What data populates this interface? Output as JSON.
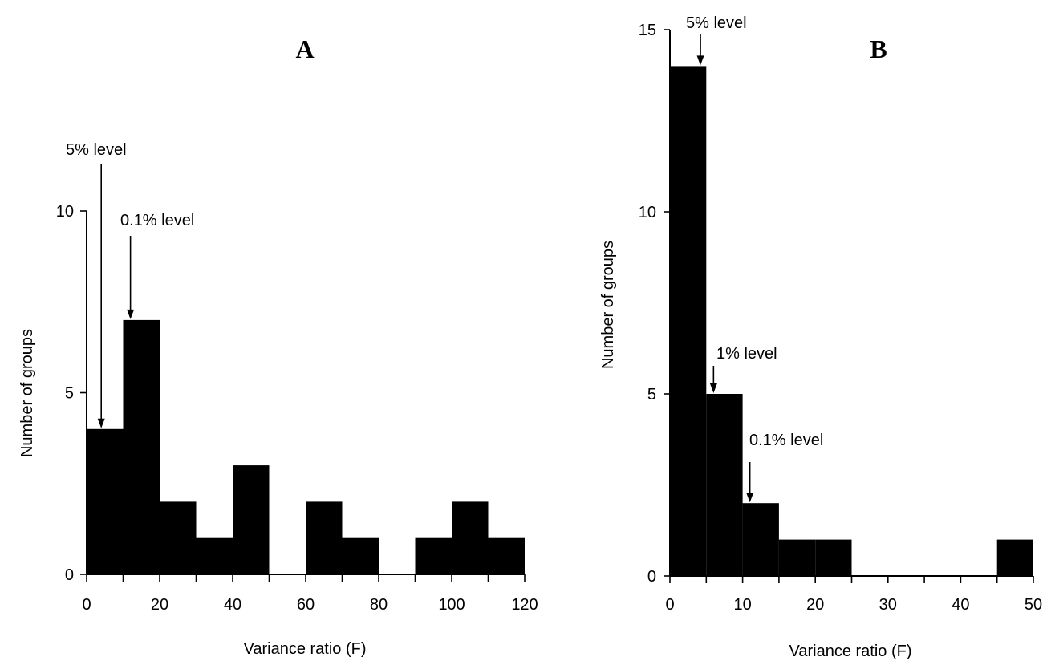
{
  "chart_data": [
    {
      "type": "bar",
      "panel": "A",
      "xlabel": "Variance ratio (F)",
      "ylabel": "Number of groups",
      "xlim": [
        0,
        120
      ],
      "ylim": [
        0,
        10
      ],
      "xticks": [
        0,
        10,
        20,
        30,
        40,
        50,
        60,
        70,
        80,
        90,
        100,
        110,
        120
      ],
      "xtick_labels": [
        "0",
        "20",
        "40",
        "60",
        "80",
        "100",
        "120"
      ],
      "xtick_label_values": [
        0,
        20,
        40,
        60,
        80,
        100,
        120
      ],
      "ytick_labels": [
        "0",
        "5",
        "10"
      ],
      "ytick_label_values": [
        0,
        5,
        10
      ],
      "bin_width": 10,
      "bins": [
        {
          "x0": 0,
          "x1": 10,
          "count": 4
        },
        {
          "x0": 10,
          "x1": 20,
          "count": 7
        },
        {
          "x0": 20,
          "x1": 30,
          "count": 2
        },
        {
          "x0": 30,
          "x1": 40,
          "count": 1
        },
        {
          "x0": 40,
          "x1": 50,
          "count": 3
        },
        {
          "x0": 50,
          "x1": 60,
          "count": 0
        },
        {
          "x0": 60,
          "x1": 70,
          "count": 2
        },
        {
          "x0": 70,
          "x1": 80,
          "count": 1
        },
        {
          "x0": 80,
          "x1": 90,
          "count": 0
        },
        {
          "x0": 90,
          "x1": 100,
          "count": 1
        },
        {
          "x0": 100,
          "x1": 110,
          "count": 2
        },
        {
          "x0": 110,
          "x1": 120,
          "count": 1
        }
      ],
      "annotations": [
        {
          "label": "5% level",
          "x": 4
        },
        {
          "label": "0.1% level",
          "x": 12
        }
      ],
      "grid": false,
      "color": "#000000"
    },
    {
      "type": "bar",
      "panel": "B",
      "xlabel": "Variance ratio (F)",
      "ylabel": "Number of groups",
      "xlim": [
        0,
        50
      ],
      "ylim": [
        0,
        15
      ],
      "xticks": [
        0,
        5,
        10,
        15,
        20,
        25,
        30,
        35,
        40,
        45,
        50
      ],
      "xtick_labels": [
        "0",
        "10",
        "20",
        "30",
        "40",
        "50"
      ],
      "xtick_label_values": [
        0,
        10,
        20,
        30,
        40,
        50
      ],
      "ytick_labels": [
        "0",
        "5",
        "10",
        "15"
      ],
      "ytick_label_values": [
        0,
        5,
        10,
        15
      ],
      "bin_width": 5,
      "bins": [
        {
          "x0": 0,
          "x1": 5,
          "count": 14
        },
        {
          "x0": 5,
          "x1": 10,
          "count": 5
        },
        {
          "x0": 10,
          "x1": 15,
          "count": 2
        },
        {
          "x0": 15,
          "x1": 20,
          "count": 1
        },
        {
          "x0": 20,
          "x1": 25,
          "count": 1
        },
        {
          "x0": 25,
          "x1": 30,
          "count": 0
        },
        {
          "x0": 30,
          "x1": 35,
          "count": 0
        },
        {
          "x0": 35,
          "x1": 40,
          "count": 0
        },
        {
          "x0": 40,
          "x1": 45,
          "count": 0
        },
        {
          "x0": 45,
          "x1": 50,
          "count": 1
        }
      ],
      "annotations": [
        {
          "label": "5% level",
          "x": 4.2
        },
        {
          "label": "1% level",
          "x": 6
        },
        {
          "label": "0.1% level",
          "x": 11
        }
      ],
      "grid": false,
      "color": "#000000"
    }
  ]
}
